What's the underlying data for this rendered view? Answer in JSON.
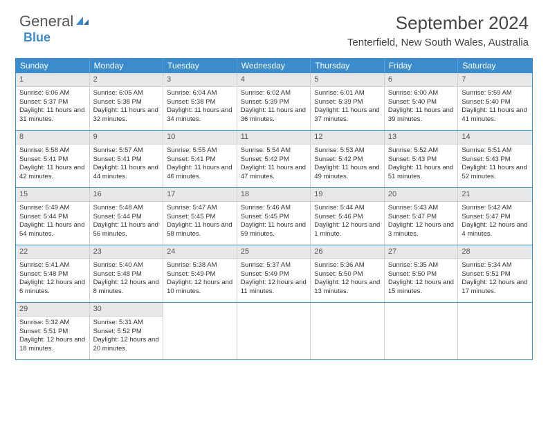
{
  "logo": {
    "text1": "General",
    "text2": "Blue"
  },
  "title": "September 2024",
  "location": "Tenterfield, New South Wales, Australia",
  "weekdays": [
    "Sunday",
    "Monday",
    "Tuesday",
    "Wednesday",
    "Thursday",
    "Friday",
    "Saturday"
  ],
  "colors": {
    "header_bg": "#3a8ccc",
    "daynum_bg": "#e8e8e8",
    "text": "#333333",
    "border": "#3a8ccc"
  },
  "days": [
    {
      "n": "1",
      "sr": "6:06 AM",
      "ss": "5:37 PM",
      "dl": "11 hours and 31 minutes."
    },
    {
      "n": "2",
      "sr": "6:05 AM",
      "ss": "5:38 PM",
      "dl": "11 hours and 32 minutes."
    },
    {
      "n": "3",
      "sr": "6:04 AM",
      "ss": "5:38 PM",
      "dl": "11 hours and 34 minutes."
    },
    {
      "n": "4",
      "sr": "6:02 AM",
      "ss": "5:39 PM",
      "dl": "11 hours and 36 minutes."
    },
    {
      "n": "5",
      "sr": "6:01 AM",
      "ss": "5:39 PM",
      "dl": "11 hours and 37 minutes."
    },
    {
      "n": "6",
      "sr": "6:00 AM",
      "ss": "5:40 PM",
      "dl": "11 hours and 39 minutes."
    },
    {
      "n": "7",
      "sr": "5:59 AM",
      "ss": "5:40 PM",
      "dl": "11 hours and 41 minutes."
    },
    {
      "n": "8",
      "sr": "5:58 AM",
      "ss": "5:41 PM",
      "dl": "11 hours and 42 minutes."
    },
    {
      "n": "9",
      "sr": "5:57 AM",
      "ss": "5:41 PM",
      "dl": "11 hours and 44 minutes."
    },
    {
      "n": "10",
      "sr": "5:55 AM",
      "ss": "5:41 PM",
      "dl": "11 hours and 46 minutes."
    },
    {
      "n": "11",
      "sr": "5:54 AM",
      "ss": "5:42 PM",
      "dl": "11 hours and 47 minutes."
    },
    {
      "n": "12",
      "sr": "5:53 AM",
      "ss": "5:42 PM",
      "dl": "11 hours and 49 minutes."
    },
    {
      "n": "13",
      "sr": "5:52 AM",
      "ss": "5:43 PM",
      "dl": "11 hours and 51 minutes."
    },
    {
      "n": "14",
      "sr": "5:51 AM",
      "ss": "5:43 PM",
      "dl": "11 hours and 52 minutes."
    },
    {
      "n": "15",
      "sr": "5:49 AM",
      "ss": "5:44 PM",
      "dl": "11 hours and 54 minutes."
    },
    {
      "n": "16",
      "sr": "5:48 AM",
      "ss": "5:44 PM",
      "dl": "11 hours and 56 minutes."
    },
    {
      "n": "17",
      "sr": "5:47 AM",
      "ss": "5:45 PM",
      "dl": "11 hours and 58 minutes."
    },
    {
      "n": "18",
      "sr": "5:46 AM",
      "ss": "5:45 PM",
      "dl": "11 hours and 59 minutes."
    },
    {
      "n": "19",
      "sr": "5:44 AM",
      "ss": "5:46 PM",
      "dl": "12 hours and 1 minute."
    },
    {
      "n": "20",
      "sr": "5:43 AM",
      "ss": "5:47 PM",
      "dl": "12 hours and 3 minutes."
    },
    {
      "n": "21",
      "sr": "5:42 AM",
      "ss": "5:47 PM",
      "dl": "12 hours and 4 minutes."
    },
    {
      "n": "22",
      "sr": "5:41 AM",
      "ss": "5:48 PM",
      "dl": "12 hours and 6 minutes."
    },
    {
      "n": "23",
      "sr": "5:40 AM",
      "ss": "5:48 PM",
      "dl": "12 hours and 8 minutes."
    },
    {
      "n": "24",
      "sr": "5:38 AM",
      "ss": "5:49 PM",
      "dl": "12 hours and 10 minutes."
    },
    {
      "n": "25",
      "sr": "5:37 AM",
      "ss": "5:49 PM",
      "dl": "12 hours and 11 minutes."
    },
    {
      "n": "26",
      "sr": "5:36 AM",
      "ss": "5:50 PM",
      "dl": "12 hours and 13 minutes."
    },
    {
      "n": "27",
      "sr": "5:35 AM",
      "ss": "5:50 PM",
      "dl": "12 hours and 15 minutes."
    },
    {
      "n": "28",
      "sr": "5:34 AM",
      "ss": "5:51 PM",
      "dl": "12 hours and 17 minutes."
    },
    {
      "n": "29",
      "sr": "5:32 AM",
      "ss": "5:51 PM",
      "dl": "12 hours and 18 minutes."
    },
    {
      "n": "30",
      "sr": "5:31 AM",
      "ss": "5:52 PM",
      "dl": "12 hours and 20 minutes."
    }
  ],
  "labels": {
    "sunrise": "Sunrise:",
    "sunset": "Sunset:",
    "daylight": "Daylight:"
  }
}
